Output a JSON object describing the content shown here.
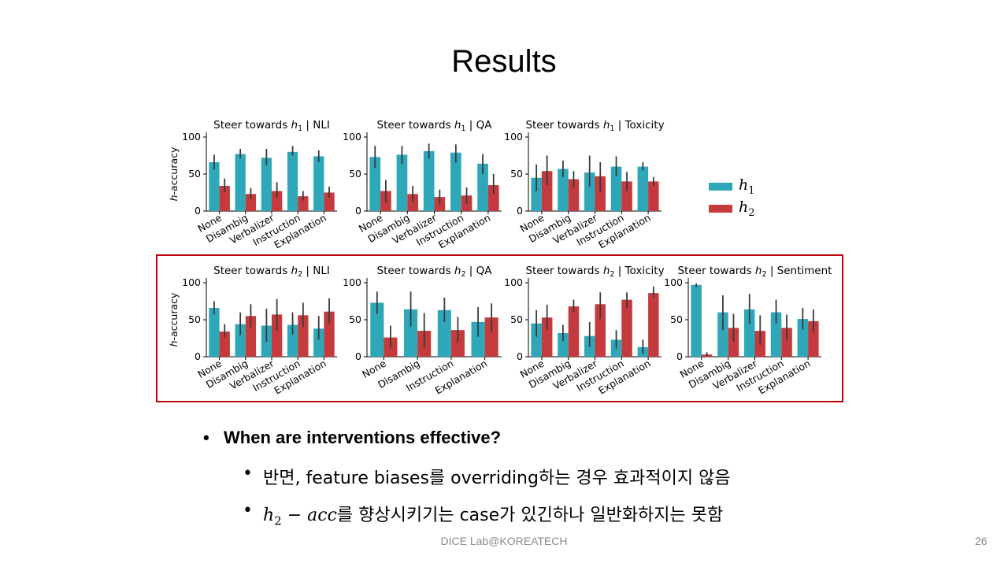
{
  "slide": {
    "title": "Results",
    "footer": "DICE Lab@KOREATECH",
    "page_number": "26"
  },
  "legend": {
    "h1": {
      "label": "h",
      "sub": "1",
      "color": "#2ea8b9"
    },
    "h2": {
      "label": "h",
      "sub": "2",
      "color": "#c53a3c"
    }
  },
  "bullets": {
    "main": "When are interventions effective?",
    "sub1": "반면, feature biases를 overriding하는 경우 효과적이지 않음",
    "sub2_math_base": "h",
    "sub2_math_sub": "2",
    "sub2_math_rest": " − acc",
    "sub2_text": "를 향상시키기는 case가 있긴하나 일반화하지는 못함"
  },
  "chart_data": [
    {
      "type": "bar",
      "title": "Steer towards h1 | NLI",
      "title_prefix": "Steer towards ",
      "title_var": "h",
      "title_sub": "1",
      "title_suffix": " | NLI",
      "ylabel": "h-accuracy",
      "ylim": [
        0,
        100
      ],
      "yticks": [
        0,
        50,
        100
      ],
      "categories": [
        "None",
        "Disambig",
        "Verbalizer",
        "Instruction",
        "Explanation"
      ],
      "series": [
        {
          "name": "h1",
          "values": [
            66,
            77,
            72,
            80,
            74
          ],
          "err_low": [
            56,
            71,
            62,
            75,
            66
          ],
          "err_high": [
            76,
            84,
            84,
            88,
            82
          ]
        },
        {
          "name": "h2",
          "values": [
            34,
            23,
            27,
            20,
            25
          ],
          "err_low": [
            25,
            16,
            18,
            14,
            18
          ],
          "err_high": [
            44,
            31,
            39,
            27,
            33
          ]
        }
      ]
    },
    {
      "type": "bar",
      "title": "Steer towards h1 | QA",
      "title_prefix": "Steer towards ",
      "title_var": "h",
      "title_sub": "1",
      "title_suffix": " | QA",
      "ylabel": "",
      "ylim": [
        0,
        100
      ],
      "yticks": [
        0,
        50,
        100
      ],
      "categories": [
        "None",
        "Disambig",
        "Verbalizer",
        "Instruction",
        "Explanation"
      ],
      "series": [
        {
          "name": "h1",
          "values": [
            73,
            76,
            81,
            79,
            64
          ],
          "err_low": [
            58,
            63,
            71,
            65,
            50
          ],
          "err_high": [
            88,
            88,
            91,
            90,
            77
          ]
        },
        {
          "name": "h2",
          "values": [
            27,
            23,
            19,
            21,
            35
          ],
          "err_low": [
            12,
            12,
            9,
            10,
            23
          ],
          "err_high": [
            42,
            34,
            29,
            32,
            50
          ]
        }
      ]
    },
    {
      "type": "bar",
      "title": "Steer towards h1 | Toxicity",
      "title_prefix": "Steer towards ",
      "title_var": "h",
      "title_sub": "1",
      "title_suffix": " | Toxicity",
      "ylabel": "",
      "ylim": [
        0,
        100
      ],
      "yticks": [
        0,
        50,
        100
      ],
      "categories": [
        "None",
        "Disambig",
        "Verbalizer",
        "Instruction",
        "Explanation"
      ],
      "series": [
        {
          "name": "h1",
          "values": [
            45,
            57,
            52,
            60,
            60
          ],
          "err_low": [
            27,
            46,
            33,
            47,
            55
          ],
          "err_high": [
            63,
            68,
            75,
            74,
            66
          ]
        },
        {
          "name": "h2",
          "values": [
            54,
            43,
            47,
            40,
            40
          ],
          "err_low": [
            35,
            32,
            25,
            27,
            34
          ],
          "err_high": [
            75,
            54,
            66,
            53,
            46
          ]
        }
      ]
    },
    {
      "type": "bar",
      "title": "Steer towards h2 | NLI",
      "title_prefix": "Steer towards ",
      "title_var": "h",
      "title_sub": "2",
      "title_suffix": " | NLI",
      "ylabel": "h-accuracy",
      "ylim": [
        0,
        100
      ],
      "yticks": [
        0,
        50,
        100
      ],
      "categories": [
        "None",
        "Disambig",
        "Verbalizer",
        "Instruction",
        "Explanation"
      ],
      "series": [
        {
          "name": "h1",
          "values": [
            66,
            44,
            42,
            43,
            38
          ],
          "err_low": [
            57,
            29,
            20,
            30,
            23
          ],
          "err_high": [
            75,
            60,
            65,
            60,
            55
          ]
        },
        {
          "name": "h2",
          "values": [
            34,
            55,
            57,
            56,
            61
          ],
          "err_low": [
            26,
            40,
            35,
            40,
            45
          ],
          "err_high": [
            44,
            71,
            78,
            73,
            79
          ]
        }
      ]
    },
    {
      "type": "bar",
      "title": "Steer towards h2 | QA",
      "title_prefix": "Steer towards ",
      "title_var": "h",
      "title_sub": "2",
      "title_suffix": " | QA",
      "ylabel": "",
      "ylim": [
        0,
        100
      ],
      "yticks": [
        0,
        50,
        100
      ],
      "categories": [
        "None",
        "Disambig",
        "Instruction",
        "Explanation"
      ],
      "series": [
        {
          "name": "h1",
          "values": [
            73,
            64,
            63,
            47
          ],
          "err_low": [
            58,
            41,
            47,
            27
          ],
          "err_high": [
            88,
            88,
            80,
            67
          ]
        },
        {
          "name": "h2",
          "values": [
            26,
            35,
            36,
            53
          ],
          "err_low": [
            12,
            12,
            20,
            34
          ],
          "err_high": [
            42,
            59,
            54,
            72
          ]
        }
      ]
    },
    {
      "type": "bar",
      "title": "Steer towards h2 | Toxicity",
      "title_prefix": "Steer towards ",
      "title_var": "h",
      "title_sub": "2",
      "title_suffix": " | Toxicity",
      "ylabel": "",
      "ylim": [
        0,
        100
      ],
      "yticks": [
        0,
        50,
        100
      ],
      "categories": [
        "None",
        "Disambig",
        "Verbalizer",
        "Instruction",
        "Explanation"
      ],
      "series": [
        {
          "name": "h1",
          "values": [
            45,
            32,
            28,
            23,
            13
          ],
          "err_low": [
            27,
            21,
            13,
            11,
            4
          ],
          "err_high": [
            63,
            43,
            47,
            36,
            23
          ]
        },
        {
          "name": "h2",
          "values": [
            53,
            68,
            71,
            77,
            86
          ],
          "err_low": [
            37,
            60,
            51,
            66,
            80
          ],
          "err_high": [
            70,
            77,
            87,
            87,
            95
          ]
        }
      ]
    },
    {
      "type": "bar",
      "title": "Steer towards h2 | Sentiment",
      "title_prefix": "Steer towards ",
      "title_var": "h",
      "title_sub": "2",
      "title_suffix": " | Sentiment",
      "ylabel": "",
      "ylim": [
        0,
        100
      ],
      "yticks": [
        0,
        50,
        100
      ],
      "categories": [
        "None",
        "Disambig",
        "Verbalizer",
        "Instruction",
        "Explanation"
      ],
      "series": [
        {
          "name": "h1",
          "values": [
            97,
            60,
            64,
            60,
            51
          ],
          "err_low": [
            94,
            36,
            44,
            45,
            37
          ],
          "err_high": [
            99,
            83,
            85,
            77,
            66
          ]
        },
        {
          "name": "h2",
          "values": [
            3,
            39,
            35,
            39,
            48
          ],
          "err_low": [
            1,
            20,
            16,
            23,
            33
          ],
          "err_high": [
            6,
            58,
            56,
            57,
            64
          ]
        }
      ]
    }
  ]
}
